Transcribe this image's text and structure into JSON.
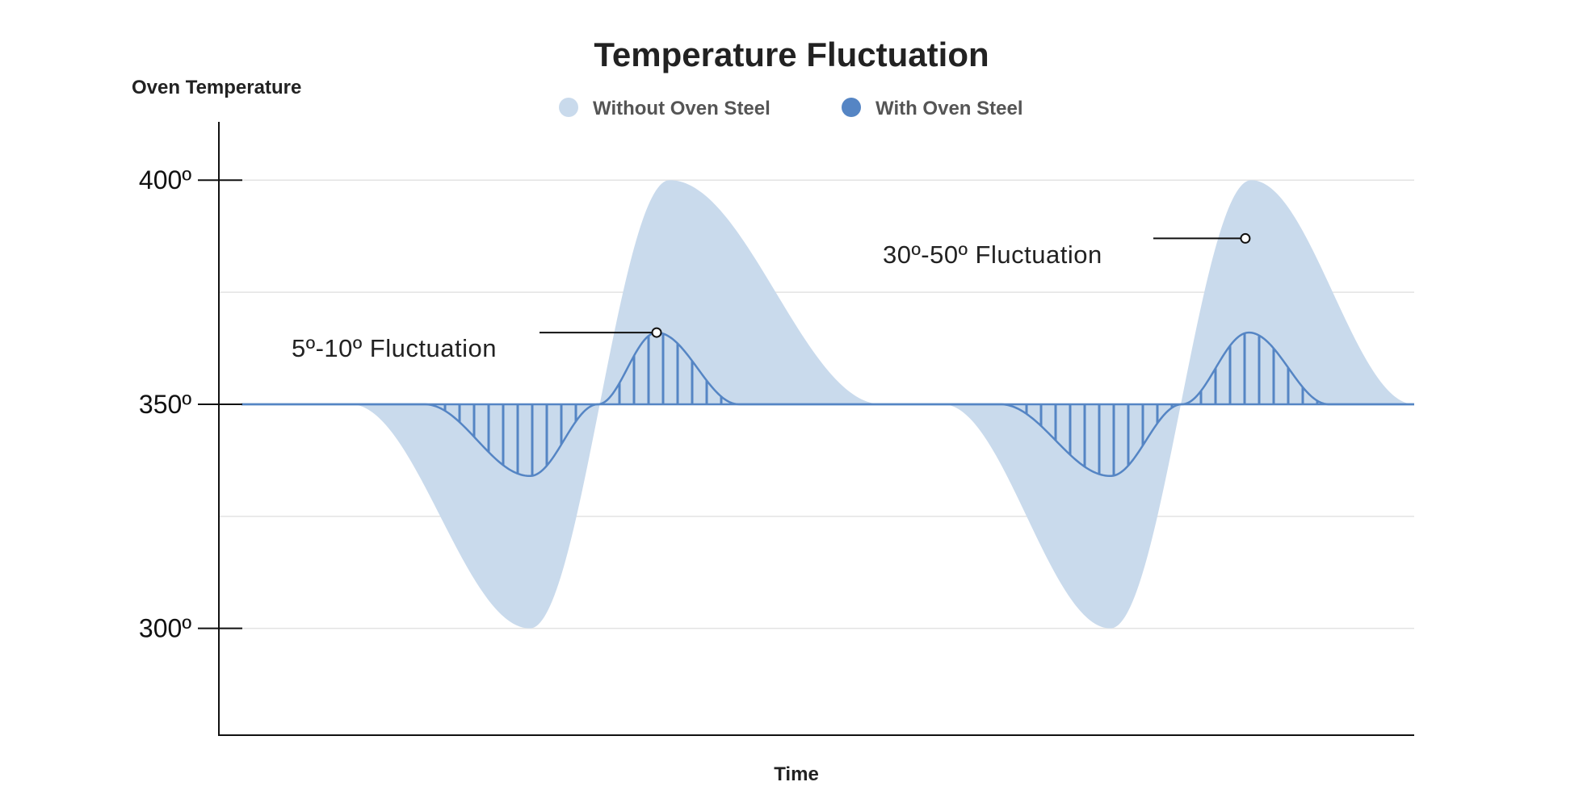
{
  "chart_data": {
    "type": "area",
    "title": "Temperature Fluctuation",
    "xlabel": "Time",
    "ylabel": "Oven Temperature",
    "ylim": [
      276,
      413
    ],
    "xlim": [
      0,
      100
    ],
    "yticks": [
      {
        "value": 400,
        "label": "400º"
      },
      {
        "value": 350,
        "label": "350º"
      },
      {
        "value": 300,
        "label": "300º"
      }
    ],
    "gridlines": [
      300,
      325,
      350,
      375,
      400
    ],
    "legend": {
      "placement": "top-center",
      "entries": [
        {
          "label": "Without Oven Steel",
          "color": "#c9daec"
        },
        {
          "label": "With Oven Steel",
          "color": "#5585c4"
        }
      ]
    },
    "series": [
      {
        "name": "Without Oven Steel",
        "color": "#c9daec",
        "baseline": 350,
        "x": [
          0,
          9.3,
          24.6,
          36.5,
          54.6,
          59.8,
          74.1,
          86.1,
          100
        ],
        "y": [
          350,
          350,
          300,
          400,
          350,
          350,
          300,
          400,
          350
        ]
      },
      {
        "name": "With Oven Steel",
        "color": "#5585c4",
        "baseline": 350,
        "x": [
          0,
          15.6,
          24.6,
          30.4,
          35.4,
          42.4,
          64.7,
          74.1,
          80.2,
          85.9,
          92.7,
          100
        ],
        "y": [
          350,
          350,
          334,
          350,
          366,
          350,
          350,
          334,
          350,
          366,
          350,
          350
        ]
      }
    ],
    "annotations": [
      {
        "text": "5º-10º Fluctuation",
        "x": 35.4,
        "y": 366
      },
      {
        "text": "30º-50º Fluctuation",
        "x": 85.6,
        "y": 387
      }
    ]
  }
}
